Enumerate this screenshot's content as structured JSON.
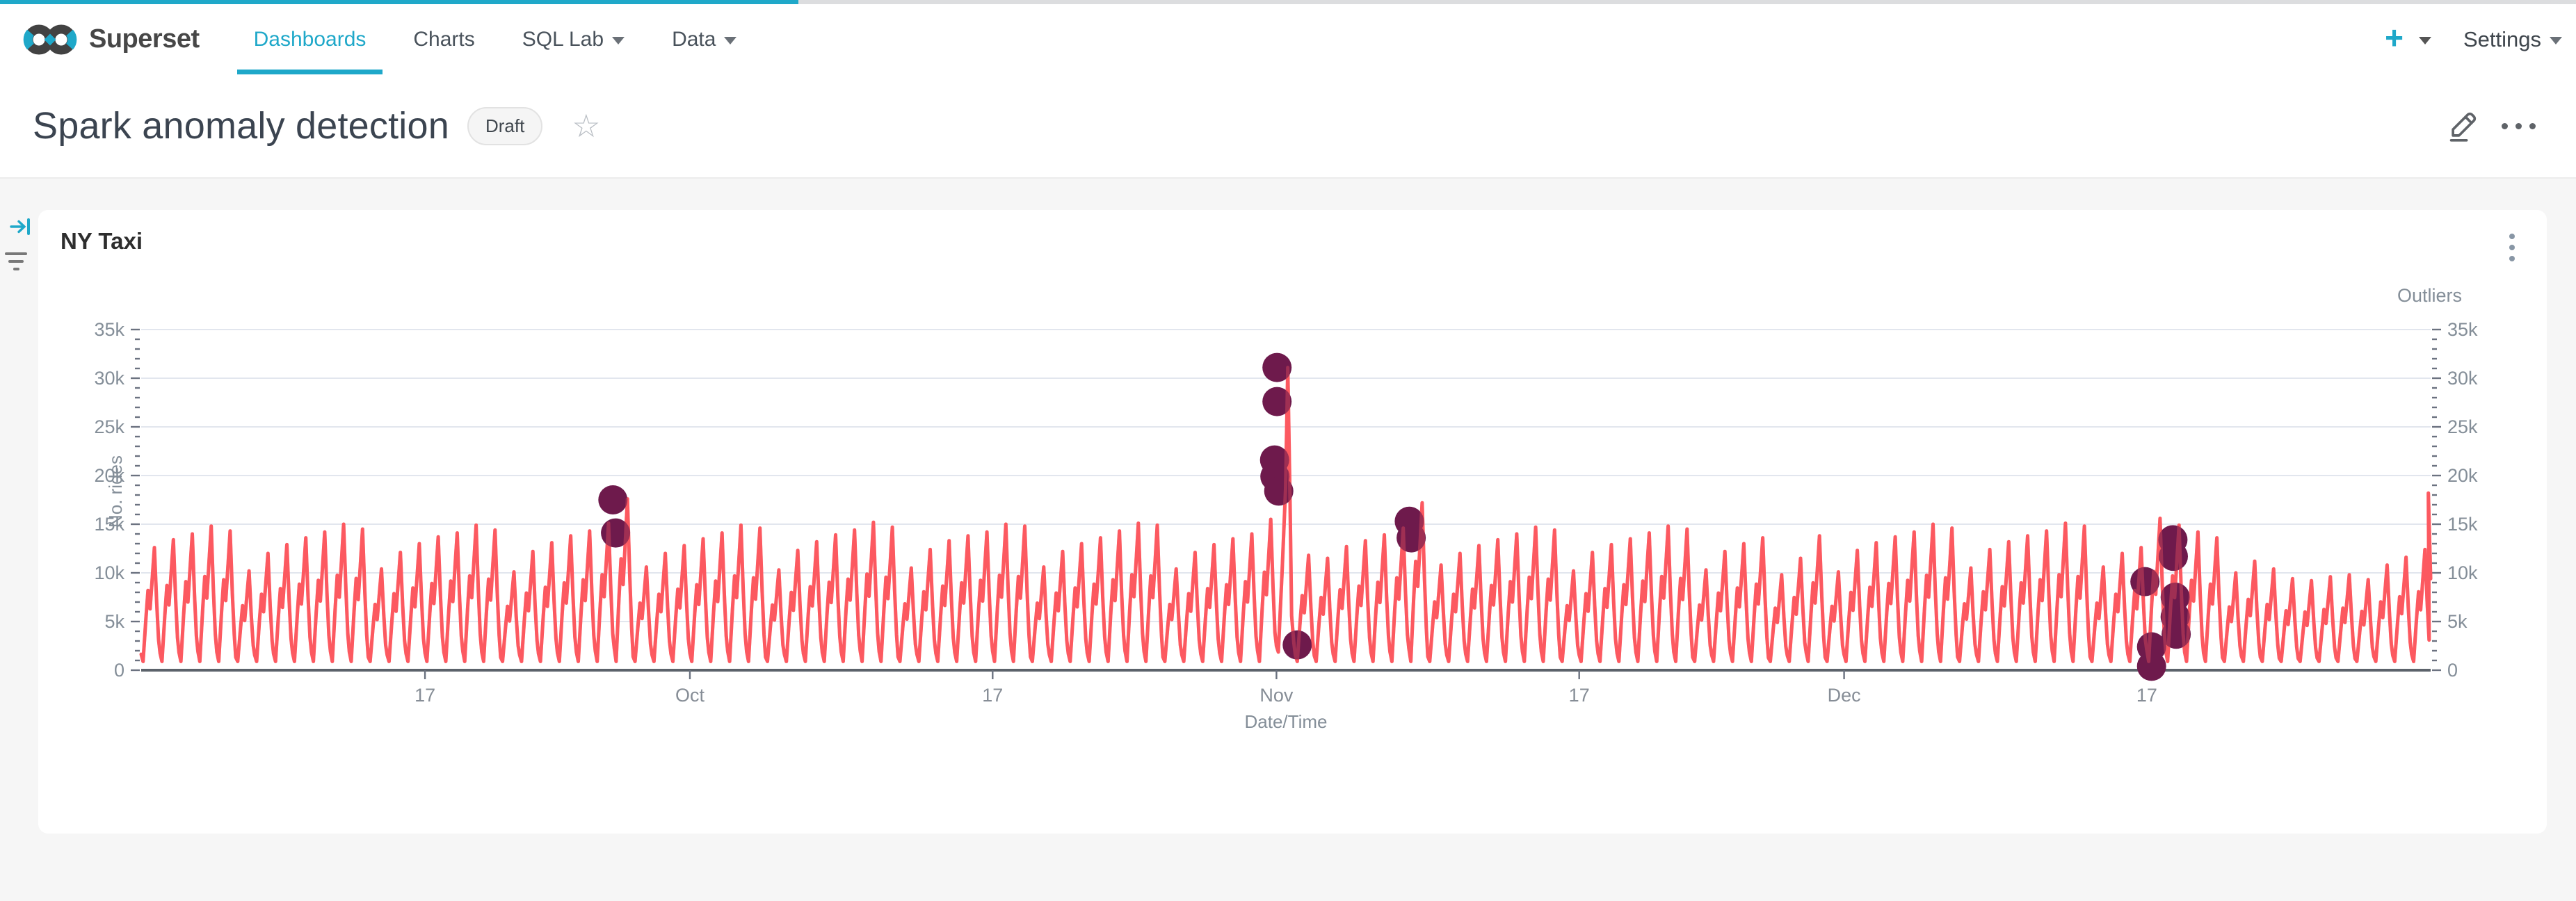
{
  "app": {
    "brand": "Superset",
    "nav": [
      {
        "label": "Dashboards",
        "active": true,
        "has_caret": false
      },
      {
        "label": "Charts",
        "active": false,
        "has_caret": false
      },
      {
        "label": "SQL Lab",
        "active": false,
        "has_caret": true
      },
      {
        "label": "Data",
        "active": false,
        "has_caret": true
      }
    ],
    "create_label": "+",
    "settings_label": "Settings",
    "accent_color": "#1fa8c9"
  },
  "header": {
    "title": "Spark anomaly detection",
    "status_badge": "Draft"
  },
  "chart_card": {
    "title": "NY Taxi"
  },
  "chart_data": {
    "type": "line",
    "title": "NY Taxi",
    "xlabel": "Date/Time",
    "ylabel_left": "No. rides",
    "ylabel_right": "Outliers",
    "ylim": [
      0,
      35000
    ],
    "grid": true,
    "y_tick_labels": [
      "0",
      "5k",
      "10k",
      "15k",
      "20k",
      "25k",
      "30k",
      "35k"
    ],
    "y_tick_step_k": 5,
    "y_minor_step_k": 1,
    "x_range_days": 121,
    "x_start_date": "Sep 2",
    "x_ticks": [
      {
        "label": "17",
        "day": 15
      },
      {
        "label": "Oct",
        "day": 29
      },
      {
        "label": "17",
        "day": 45
      },
      {
        "label": "Nov",
        "day": 60
      },
      {
        "label": "17",
        "day": 76
      },
      {
        "label": "Dec",
        "day": 90
      },
      {
        "label": "17",
        "day": 106
      }
    ],
    "line_color": "#fc5a60",
    "outlier_color": "#6e1a4c",
    "gridline_color": "#e2e6ee",
    "axis_color": "#5c636b",
    "label_color": "#848e98",
    "daily_peaks_k": [
      12.6,
      13.4,
      14.0,
      14.8,
      14.3,
      10.2,
      12.0,
      12.9,
      13.6,
      14.2,
      15.0,
      14.5,
      10.4,
      12.1,
      13.0,
      13.7,
      14.1,
      14.9,
      14.4,
      10.1,
      12.2,
      13.1,
      13.8,
      14.3,
      15.1,
      17.6,
      10.6,
      12.0,
      12.8,
      13.5,
      14.1,
      14.9,
      14.6,
      10.3,
      12.3,
      13.2,
      13.9,
      14.4,
      15.2,
      14.7,
      10.5,
      12.4,
      13.3,
      13.8,
      14.2,
      15.0,
      14.8,
      10.6,
      12.2,
      13.0,
      13.6,
      14.3,
      15.1,
      14.9,
      10.4,
      12.1,
      12.9,
      13.5,
      14.0,
      15.5,
      31.1,
      11.8,
      11.5,
      12.7,
      13.3,
      13.9,
      14.6,
      17.2,
      10.8,
      12.0,
      12.8,
      13.4,
      14.0,
      14.7,
      14.4,
      10.2,
      12.1,
      12.9,
      13.5,
      14.1,
      14.8,
      14.5,
      10.3,
      12.2,
      13.0,
      13.6,
      9.8,
      11.5,
      13.8,
      10.1,
      12.3,
      13.1,
      13.7,
      14.2,
      15.0,
      14.6,
      10.5,
      12.4,
      13.2,
      13.8,
      14.3,
      15.1,
      14.8,
      10.6,
      12.0,
      12.6,
      15.6,
      14.9,
      14.2,
      13.6,
      10.0,
      11.2,
      10.4,
      9.4,
      9.2,
      9.6,
      9.8,
      9.3,
      10.8,
      11.6,
      12.4
    ],
    "day_profile": [
      [
        0.0,
        0.13
      ],
      [
        0.1,
        0.05
      ],
      [
        0.25,
        0.42
      ],
      [
        0.36,
        0.65
      ],
      [
        0.47,
        0.5
      ],
      [
        0.6,
        0.78
      ],
      [
        0.7,
        1.0
      ],
      [
        0.82,
        0.55
      ],
      [
        0.92,
        0.25
      ]
    ],
    "spike_day": {
      "day": 60,
      "points": [
        [
          0.0,
          0.08
        ],
        [
          0.1,
          0.06
        ],
        [
          0.3,
          0.33
        ],
        [
          0.48,
          0.6
        ],
        [
          0.6,
          1.0
        ],
        [
          0.72,
          0.55
        ],
        [
          0.8,
          0.18
        ],
        [
          0.92,
          0.09
        ]
      ]
    },
    "min_value_k": 0.9,
    "end_segment_k": [
      [
        120.88,
        18.2
      ],
      [
        121,
        9.4
      ]
    ],
    "outliers_k": [
      [
        24.93,
        17.5
      ],
      [
        25.07,
        14.1
      ],
      [
        59.9,
        21.6
      ],
      [
        59.92,
        19.9
      ],
      [
        60.03,
        31.1
      ],
      [
        60.03,
        27.6
      ],
      [
        60.12,
        18.4
      ],
      [
        61.1,
        2.6
      ],
      [
        67.02,
        15.3
      ],
      [
        67.12,
        13.6
      ],
      [
        105.9,
        9.1
      ],
      [
        106.25,
        2.4
      ],
      [
        106.25,
        0.4
      ],
      [
        107.38,
        13.4
      ],
      [
        107.4,
        11.7
      ],
      [
        107.5,
        7.5
      ],
      [
        107.5,
        5.5
      ],
      [
        107.55,
        3.7
      ]
    ],
    "outlier_radius": 21,
    "legend_position": "top-right"
  }
}
